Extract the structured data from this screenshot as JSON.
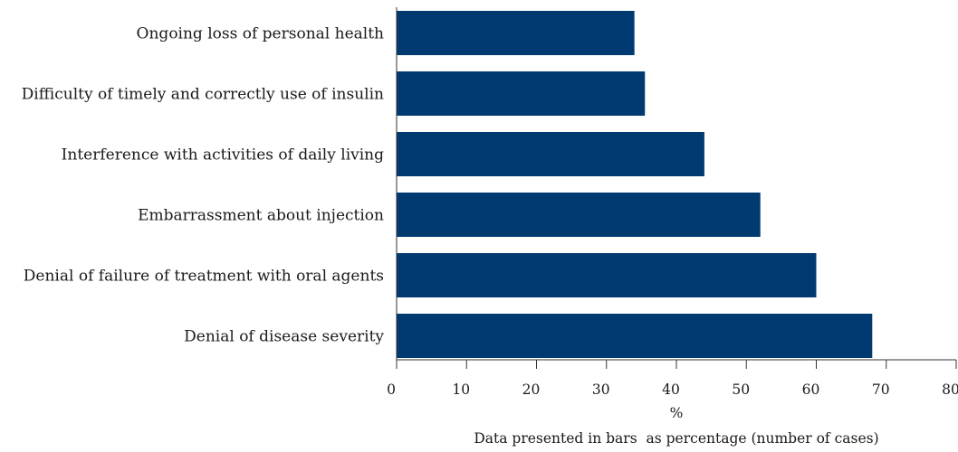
{
  "chart_data": {
    "type": "bar",
    "orientation": "horizontal",
    "categories": [
      "Ongoing loss of personal health",
      "Difficulty of timely and correctly use of insulin",
      "Interference with activities of daily living",
      "Embarrassment about injection",
      "Denial of failure of treatment with oral agents",
      "Denial of disease severity"
    ],
    "values": [
      34,
      35.5,
      44,
      52,
      60,
      68
    ],
    "xlim": [
      0,
      80
    ],
    "x_ticks": [
      0,
      10,
      20,
      30,
      40,
      50,
      60,
      70,
      80
    ],
    "xlabel": "%",
    "caption": "Data presented in bars  as percentage (number of cases)",
    "bar_color": "#003a70",
    "grid": false
  }
}
